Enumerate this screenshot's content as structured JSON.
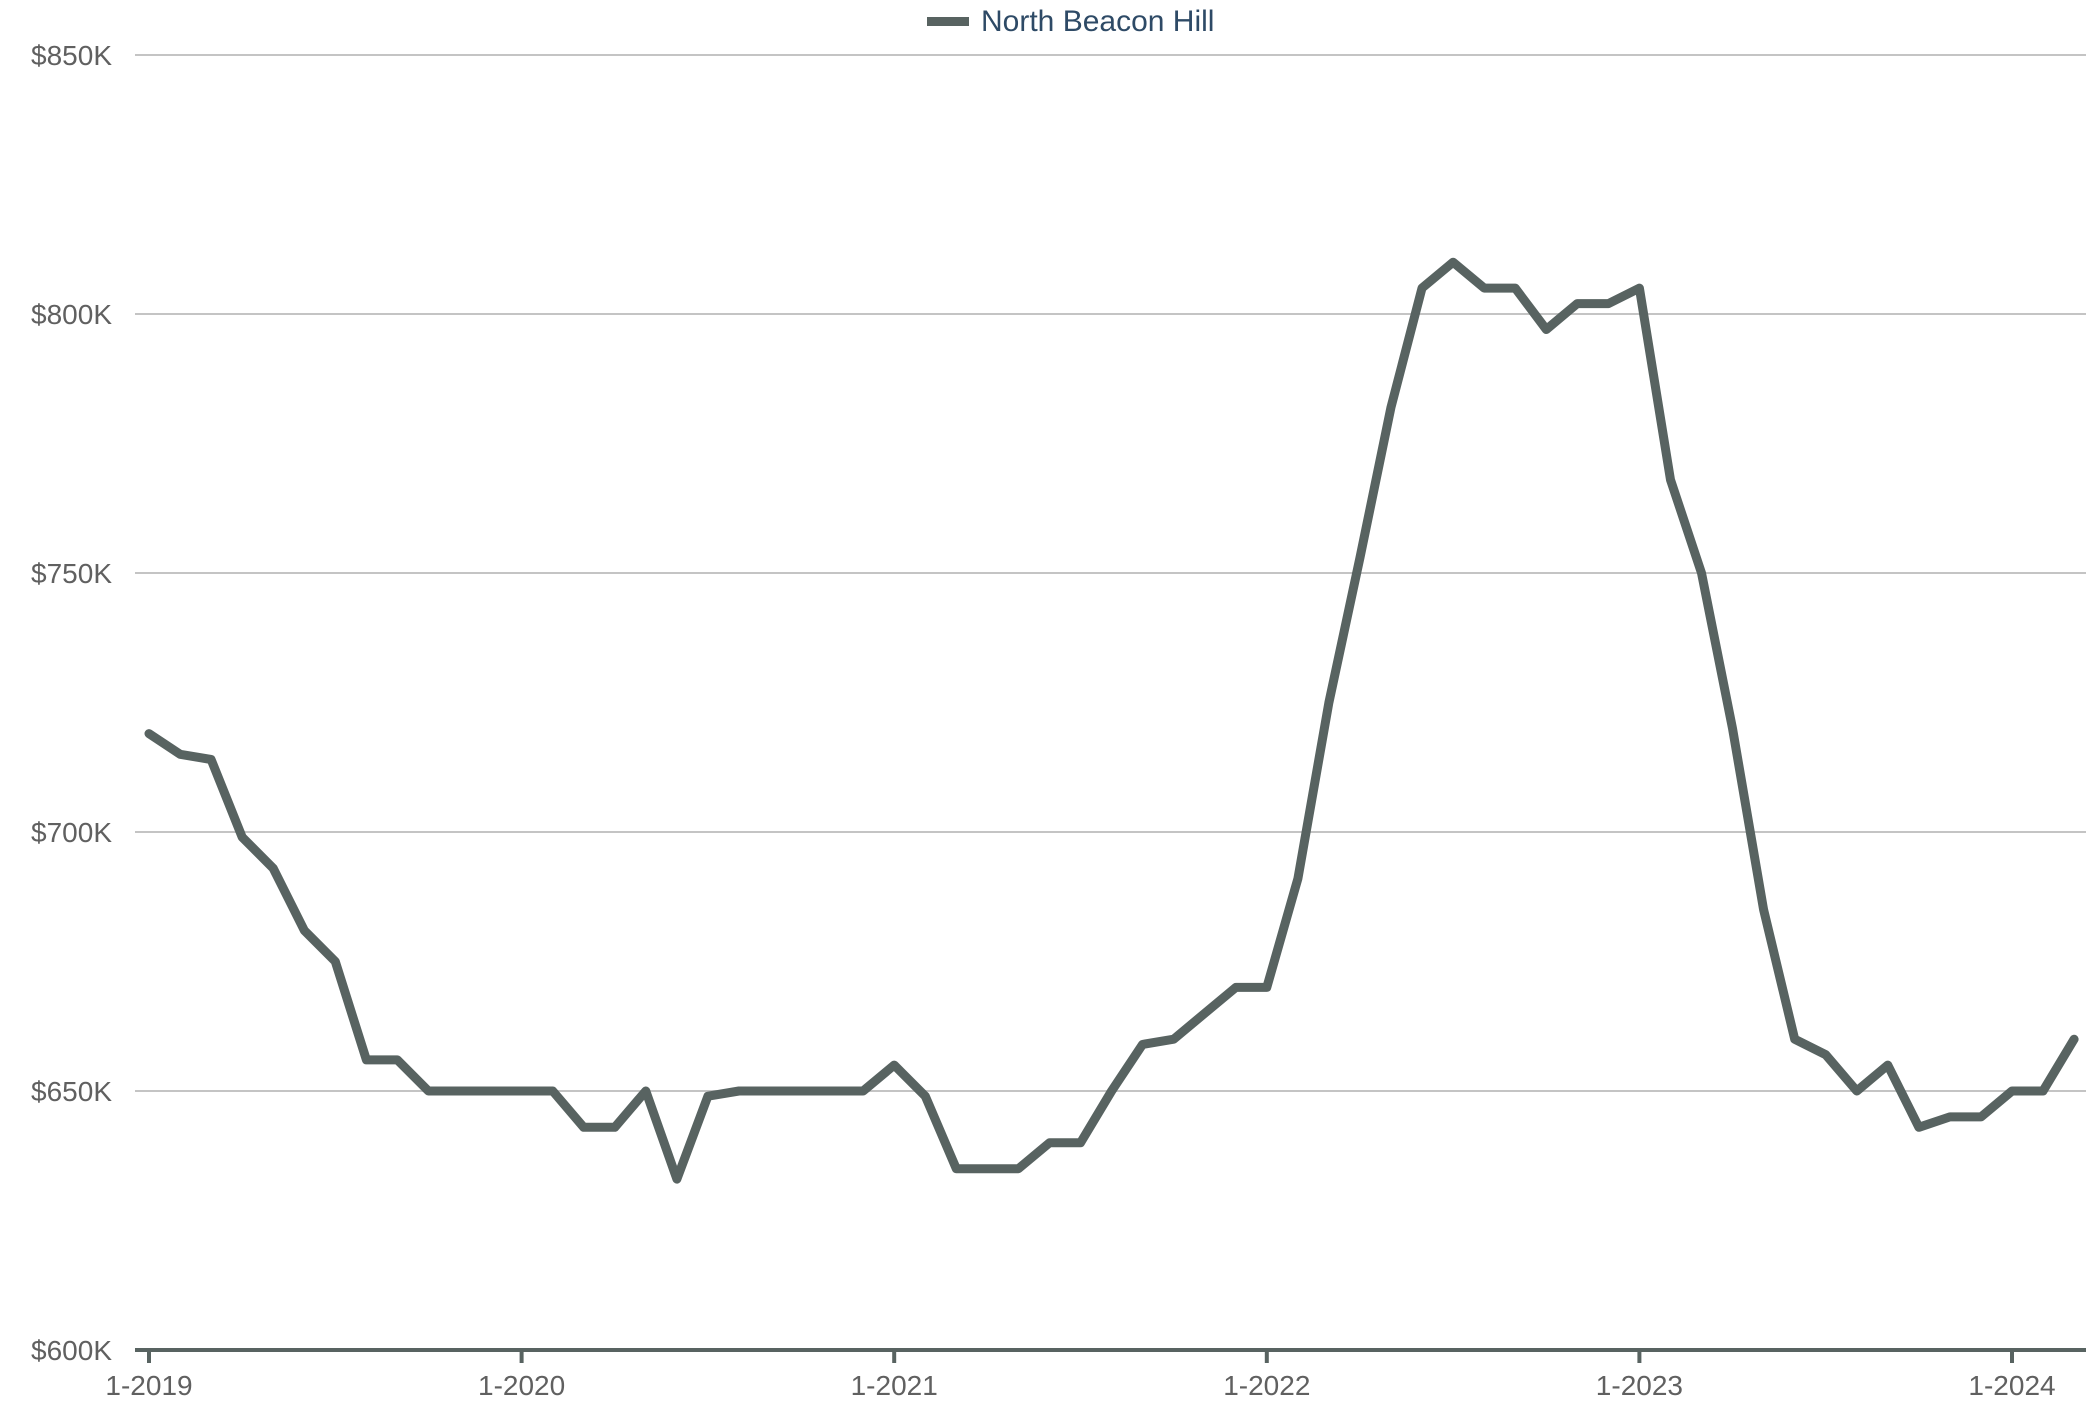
{
  "legend": {
    "label": "North Beacon Hill"
  },
  "colors": {
    "series": "#586361",
    "grid": "#c4c4c4",
    "axis": "#586361",
    "tick_text": "#606060",
    "legend_text": "#2e4a66"
  },
  "chart_data": {
    "type": "line",
    "title": "",
    "xlabel": "",
    "ylabel": "",
    "grid": true,
    "legend_position": "top-center",
    "x_tick_labels": [
      "1-2019",
      "1-2020",
      "1-2021",
      "1-2022",
      "1-2023",
      "1-2024"
    ],
    "y_tick_labels": [
      "$600K",
      "$650K",
      "$700K",
      "$750K",
      "$800K",
      "$850K"
    ],
    "ylim": [
      600000,
      850000
    ],
    "xlim": [
      "2019-01",
      "2024-03"
    ],
    "series": [
      {
        "name": "North Beacon Hill",
        "x": [
          "2019-01",
          "2019-02",
          "2019-03",
          "2019-04",
          "2019-05",
          "2019-06",
          "2019-07",
          "2019-08",
          "2019-09",
          "2019-10",
          "2019-11",
          "2019-12",
          "2020-01",
          "2020-02",
          "2020-03",
          "2020-04",
          "2020-05",
          "2020-06",
          "2020-07",
          "2020-08",
          "2020-09",
          "2020-10",
          "2020-11",
          "2020-12",
          "2021-01",
          "2021-02",
          "2021-03",
          "2021-04",
          "2021-05",
          "2021-06",
          "2021-07",
          "2021-08",
          "2021-09",
          "2021-10",
          "2021-11",
          "2021-12",
          "2022-01",
          "2022-02",
          "2022-03",
          "2022-04",
          "2022-05",
          "2022-06",
          "2022-07",
          "2022-08",
          "2022-09",
          "2022-10",
          "2022-11",
          "2022-12",
          "2023-01",
          "2023-02",
          "2023-03",
          "2023-04",
          "2023-05",
          "2023-06",
          "2023-07",
          "2023-08",
          "2023-09",
          "2023-10",
          "2023-11",
          "2023-12",
          "2024-01",
          "2024-02",
          "2024-03"
        ],
        "values": [
          719000,
          715000,
          714000,
          699000,
          693000,
          681000,
          675000,
          656000,
          656000,
          650000,
          650000,
          650000,
          650000,
          650000,
          643000,
          643000,
          650000,
          633000,
          649000,
          650000,
          650000,
          650000,
          650000,
          650000,
          655000,
          649000,
          635000,
          635000,
          635000,
          640000,
          640000,
          650000,
          659000,
          660000,
          665000,
          670000,
          670000,
          691000,
          725000,
          753000,
          782000,
          805000,
          810000,
          805000,
          805000,
          797000,
          802000,
          802000,
          805000,
          768000,
          750000,
          720000,
          685000,
          660000,
          657000,
          650000,
          655000,
          643000,
          645000,
          645000,
          650000,
          650000,
          660000
        ]
      }
    ]
  }
}
